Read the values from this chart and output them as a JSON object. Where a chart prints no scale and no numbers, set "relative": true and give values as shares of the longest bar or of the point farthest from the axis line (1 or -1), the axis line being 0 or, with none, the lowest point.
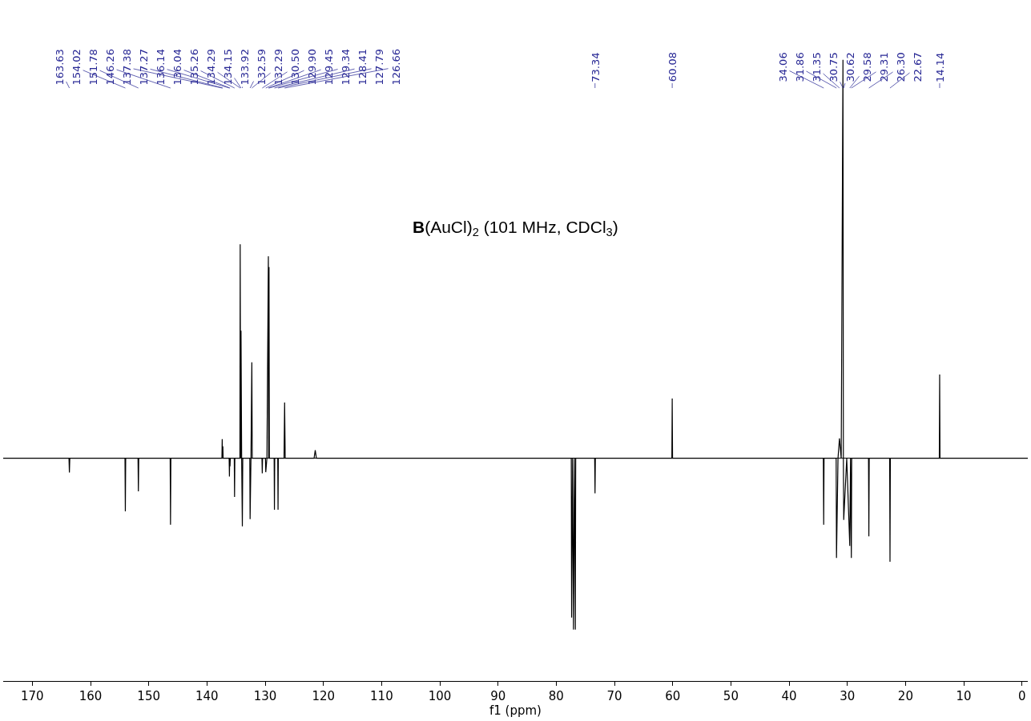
{
  "chart_data": {
    "type": "line",
    "relative": true,
    "title": "B(AuCl)$_{2}$ (101 MHz, CDCl$_{3}$)",
    "xlabel": "f1 (ppm)",
    "xlim": [
      175,
      -1
    ],
    "xticks": [
      170,
      160,
      150,
      140,
      130,
      120,
      110,
      100,
      90,
      80,
      70,
      60,
      50,
      40,
      30,
      20,
      10,
      0
    ],
    "marker": "none",
    "line_style": "solid",
    "series": [
      {
        "color": "#000000",
        "x": [
          175,
          163.7,
          163.63,
          163.56,
          154.08,
          154.02,
          153.96,
          151.84,
          151.78,
          151.72,
          146.32,
          146.26,
          146.2,
          137.43,
          137.38,
          137.33,
          137.27,
          137.22,
          136.19,
          136.14,
          136.09,
          136.04,
          135.99,
          135.31,
          135.26,
          135.21,
          134.34,
          134.29,
          134.22,
          134.15,
          134.04,
          133.92,
          133.85,
          132.64,
          132.59,
          132.44,
          132.29,
          132.22,
          130.55,
          130.5,
          130.45,
          129.95,
          129.9,
          129.7,
          129.45,
          129.4,
          129.34,
          129.28,
          128.46,
          128.41,
          128.36,
          127.84,
          127.79,
          127.74,
          126.76,
          126.66,
          126.56,
          121.6,
          121.4,
          121.2,
          77.42,
          77.36,
          77.2,
          77.04,
          76.88,
          76.72,
          76.66,
          73.4,
          73.34,
          73.28,
          60.14,
          60.08,
          60.02,
          34.12,
          34.06,
          34.0,
          31.92,
          31.86,
          31.6,
          31.35,
          31.05,
          30.75,
          30.68,
          30.62,
          30.1,
          29.58,
          29.45,
          29.31,
          29.25,
          26.36,
          26.3,
          26.24,
          22.73,
          22.67,
          22.61,
          14.2,
          14.14,
          14.08,
          -1
        ],
        "values": [
          0,
          0,
          -0.036,
          0,
          0,
          -0.133,
          0,
          0,
          -0.083,
          0,
          0,
          -0.167,
          0,
          0,
          0.048,
          0,
          0.03,
          0,
          0,
          -0.046,
          0,
          -0.02,
          0,
          0,
          -0.097,
          0,
          0,
          0.537,
          0,
          0.32,
          0,
          -0.171,
          0,
          0,
          -0.153,
          0,
          0.241,
          0,
          0,
          -0.038,
          0,
          0,
          -0.035,
          0,
          0.507,
          0,
          0.48,
          0,
          0,
          -0.129,
          0,
          0,
          -0.129,
          0,
          0,
          0.14,
          0,
          0,
          0.02,
          0,
          0,
          -0.4,
          0,
          -0.43,
          0,
          -0.43,
          0,
          0,
          -0.088,
          0,
          0,
          0.15,
          0,
          0,
          -0.167,
          0,
          0,
          -0.25,
          0,
          0.05,
          0,
          1,
          0,
          -0.155,
          0,
          -0.22,
          0,
          -0.25,
          0,
          0,
          -0.196,
          0,
          0,
          -0.26,
          0,
          0,
          0.21,
          0,
          0
        ]
      }
    ],
    "annotations": [
      "163.63",
      "154.02",
      "151.78",
      "146.26",
      "137.38",
      "137.27",
      "136.14",
      "136.04",
      "135.26",
      "134.29",
      "134.15",
      "133.92",
      "132.59",
      "132.29",
      "130.50",
      "129.90",
      "129.45",
      "129.34",
      "128.41",
      "127.79",
      "126.66",
      "73.34",
      "60.08",
      "34.06",
      "31.86",
      "31.35",
      "30.75",
      "30.62",
      "29.58",
      "29.31",
      "26.30",
      "22.67",
      "14.14"
    ]
  }
}
